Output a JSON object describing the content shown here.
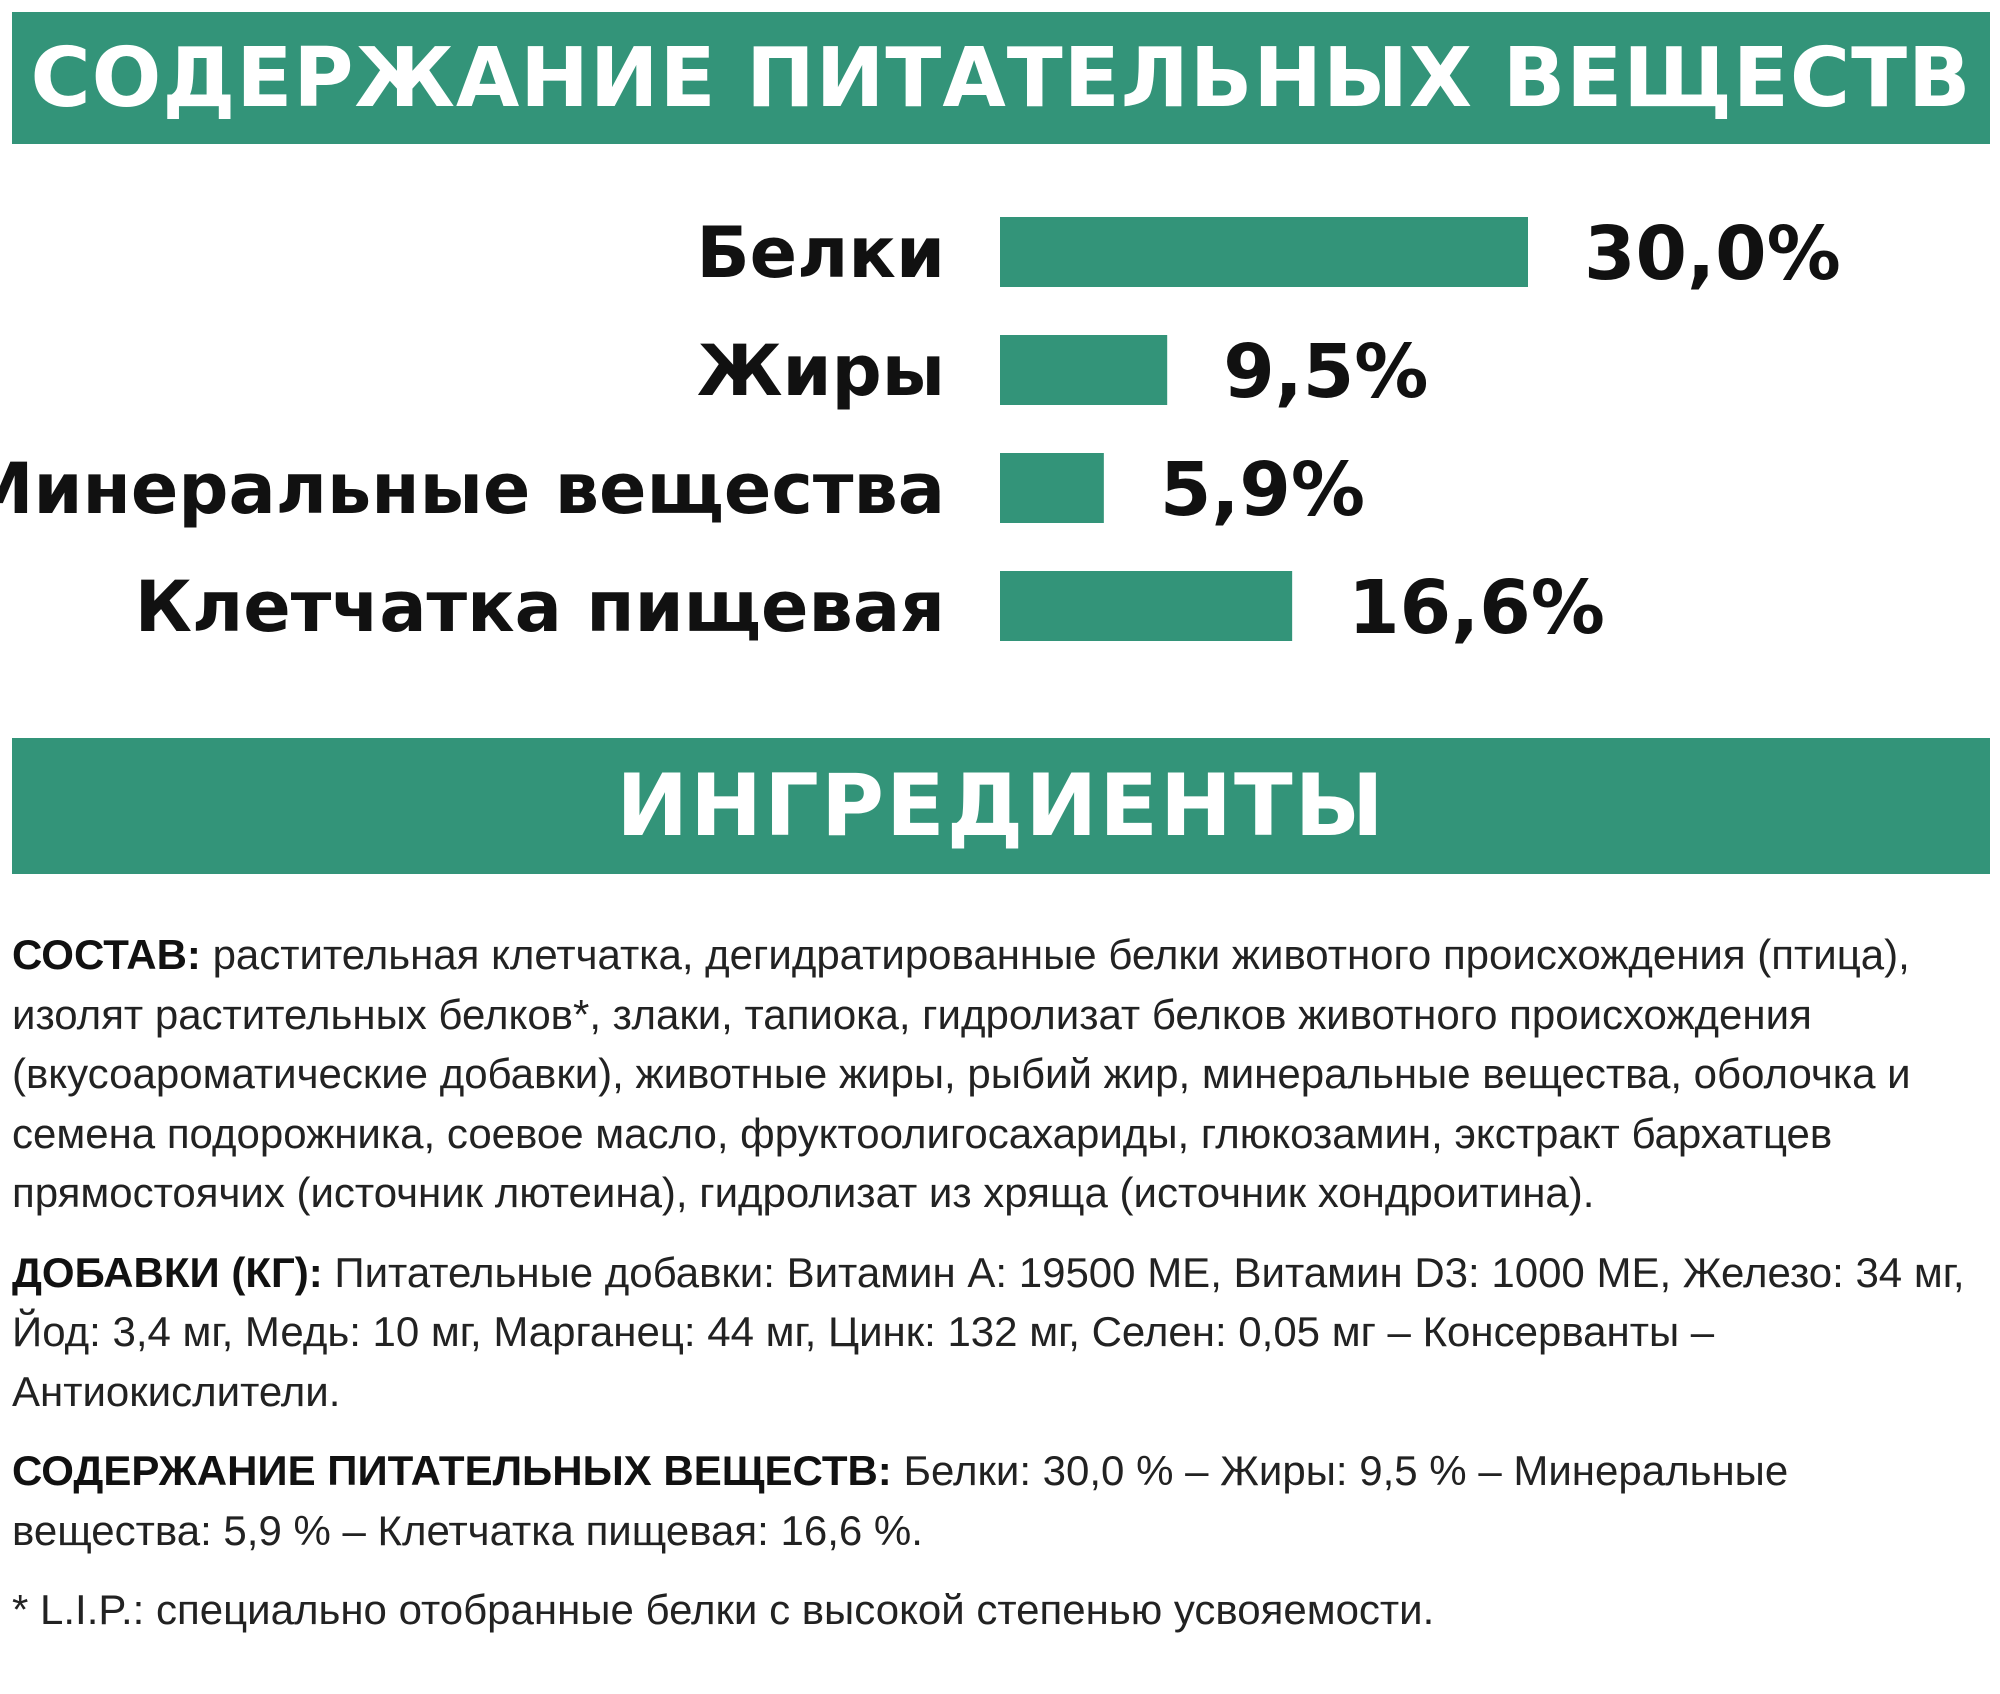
{
  "header": {
    "title": "СОДЕРЖАНИЕ ПИТАТЕЛЬНЫХ ВЕЩЕСТВ"
  },
  "colors": {
    "accent": "#339479",
    "text": "#1a1a1a"
  },
  "chart_data": {
    "type": "bar",
    "orientation": "horizontal",
    "categories": [
      "Белки",
      "Жиры",
      "Минеральные вещества",
      "Клетчатка пищевая"
    ],
    "values": [
      30.0,
      9.5,
      5.9,
      16.6
    ],
    "value_labels": [
      "30,0%",
      "9,5%",
      "5,9%",
      "16,6%"
    ],
    "xlim": [
      0,
      30.0
    ],
    "grid": false
  },
  "ingredients_banner": {
    "title": "ИНГРЕДИЕНТЫ"
  },
  "ingredients": {
    "composition_label": "СОСТАВ:",
    "composition_text": " растительная клетчатка, дегидратированные белки животного происхождения (птица), изолят растительных белков*, злаки, тапиока, гидролизат белков животного происхождения (вкусоароматические добавки), животные жиры, рыбий жир, минеральные вещества, оболочка и семена подорожника, соевое масло, фруктоолигосахариды, глюкозамин, экстракт бархатцев прямостоячих (источник лютеина), гидролизат из хряща (источник хондроитина).",
    "additives_label": "ДОБАВКИ (КГ):",
    "additives_text": " Питательные добавки: Витамин А: 19500 МЕ, Витамин D3: 1000 МЕ, Железо: 34 мг, Йод: 3,4 мг, Медь: 10 мг, Марганец: 44 мг, Цинк: 132 мг, Селен: 0,05 мг – Консерванты – Антиокислители.",
    "nutrients_label": "СОДЕРЖАНИЕ ПИТАТЕЛЬНЫХ ВЕЩЕСТВ:",
    "nutrients_text": " Белки: 30,0 % – Жиры: 9,5 % – Минеральные вещества: 5,9 % – Клетчатка пищевая: 16,6 %.",
    "footnote": "* L.I.P.: специально отобранные белки с высокой степенью усвояемости."
  }
}
